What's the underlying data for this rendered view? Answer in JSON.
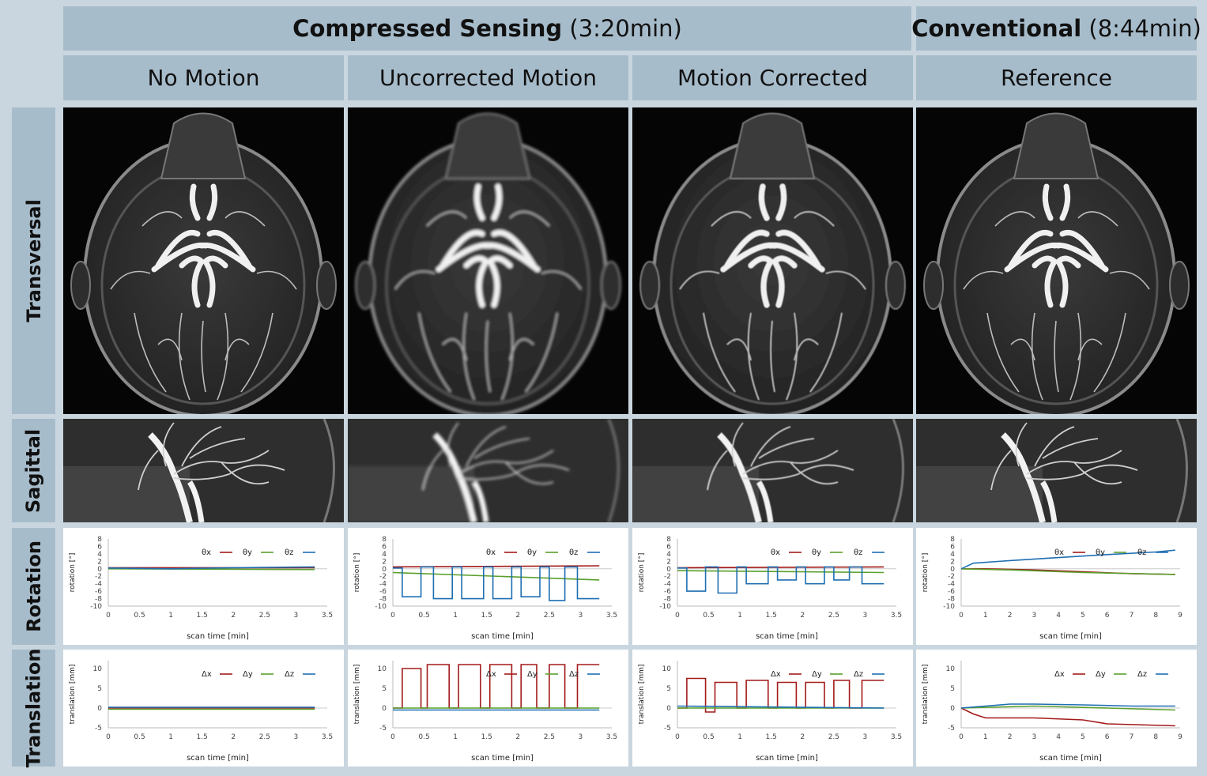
{
  "header": {
    "cs_bold": "Compressed Sensing",
    "cs_time": "(3:20min)",
    "conv_bold": "Conventional",
    "conv_time": "(8:44min)"
  },
  "columns": [
    "No Motion",
    "Uncorrected Motion",
    "Motion Corrected",
    "Reference"
  ],
  "rows": [
    "Transversal",
    "Sagittal",
    "Rotation",
    "Translation"
  ],
  "colors": {
    "x": "#a31a1a",
    "y": "#5aa02c",
    "z": "#1f6fb2",
    "header_bg": "#a7bccb",
    "page_bg": "#c9d6df"
  },
  "chart_data": [
    {
      "type": "line",
      "panel": "rotation-no-motion",
      "ylabel": "rotation [°]",
      "xlabel": "scan time [min]",
      "ylim": [
        -10,
        8
      ],
      "yticks": [
        8,
        6,
        4,
        2,
        0,
        -2,
        -4,
        -6,
        -8,
        -10
      ],
      "xticks": [
        0,
        0.5,
        1,
        1.5,
        2,
        2.5,
        3,
        3.5
      ],
      "legend": [
        "θx",
        "θy",
        "θz"
      ],
      "series": [
        {
          "name": "θx",
          "x": [
            0,
            3.3
          ],
          "y": [
            0.3,
            0.3
          ]
        },
        {
          "name": "θy",
          "x": [
            0,
            3.3
          ],
          "y": [
            0,
            -0.2
          ]
        },
        {
          "name": "θz",
          "x": [
            0,
            1,
            2,
            3.3
          ],
          "y": [
            0.2,
            0,
            0.3,
            0.5
          ]
        }
      ]
    },
    {
      "type": "line",
      "panel": "rotation-uncorrected",
      "ylabel": "rotation [°]",
      "xlabel": "scan time [min]",
      "ylim": [
        -10,
        8
      ],
      "yticks": [
        8,
        6,
        4,
        2,
        0,
        -2,
        -4,
        -6,
        -8,
        -10
      ],
      "xticks": [
        0,
        0.5,
        1,
        1.5,
        2,
        2.5,
        3,
        3.5
      ],
      "legend": [
        "θx",
        "θy",
        "θz"
      ],
      "series": [
        {
          "name": "θx",
          "x": [
            0,
            3.3
          ],
          "y": [
            0.5,
            0.8
          ]
        },
        {
          "name": "θy",
          "x": [
            0,
            3.3
          ],
          "y": [
            -1,
            -3
          ]
        },
        {
          "name": "θz",
          "x": [
            0,
            0.15,
            0.15,
            0.45,
            0.45,
            0.65,
            0.65,
            0.95,
            0.95,
            1.1,
            1.1,
            1.45,
            1.45,
            1.6,
            1.6,
            1.9,
            1.9,
            2.05,
            2.05,
            2.35,
            2.35,
            2.5,
            2.5,
            2.75,
            2.75,
            2.95,
            2.95,
            3.3
          ],
          "y": [
            0.2,
            0.2,
            -7.5,
            -7.5,
            0.5,
            0.5,
            -8,
            -8,
            0.5,
            0.5,
            -8,
            -8,
            0.5,
            0.5,
            -8,
            -8,
            0.5,
            0.5,
            -7.5,
            -7.5,
            0.5,
            0.5,
            -8.5,
            -8.5,
            0.5,
            0.5,
            -8,
            -8
          ]
        }
      ]
    },
    {
      "type": "line",
      "panel": "rotation-corrected",
      "ylabel": "rotation [°]",
      "xlabel": "scan time [min]",
      "ylim": [
        -10,
        8
      ],
      "yticks": [
        8,
        6,
        4,
        2,
        0,
        -2,
        -4,
        -6,
        -8,
        -10
      ],
      "xticks": [
        0,
        0.5,
        1,
        1.5,
        2,
        2.5,
        3,
        3.5
      ],
      "legend": [
        "θx",
        "θy",
        "θz"
      ],
      "series": [
        {
          "name": "θx",
          "x": [
            0,
            3.3
          ],
          "y": [
            0.3,
            0.5
          ]
        },
        {
          "name": "θy",
          "x": [
            0,
            3.3
          ],
          "y": [
            -0.5,
            -1
          ]
        },
        {
          "name": "θz",
          "x": [
            0,
            0.15,
            0.15,
            0.45,
            0.45,
            0.65,
            0.65,
            0.95,
            0.95,
            1.1,
            1.1,
            1.45,
            1.45,
            1.6,
            1.6,
            1.9,
            1.9,
            2.05,
            2.05,
            2.35,
            2.35,
            2.5,
            2.5,
            2.75,
            2.75,
            2.95,
            2.95,
            3.3
          ],
          "y": [
            0.2,
            0.2,
            -6,
            -6,
            0.5,
            0.5,
            -6.5,
            -6.5,
            0.5,
            0.5,
            -4,
            -4,
            0.5,
            0.5,
            -3,
            -3,
            0.5,
            0.5,
            -4,
            -4,
            0.5,
            0.5,
            -3,
            -3,
            0.5,
            0.5,
            -4,
            -4
          ]
        }
      ]
    },
    {
      "type": "line",
      "panel": "rotation-reference",
      "ylabel": "rotation [°]",
      "xlabel": "scan time [min]",
      "ylim": [
        -10,
        8
      ],
      "yticks": [
        8,
        6,
        4,
        2,
        0,
        -2,
        -4,
        -6,
        -8,
        -10
      ],
      "xticks": [
        0,
        1,
        2,
        3,
        4,
        5,
        6,
        7,
        8,
        9
      ],
      "legend": [
        "θx",
        "θy",
        "θz"
      ],
      "series": [
        {
          "name": "θx",
          "x": [
            0,
            1,
            3,
            5,
            7,
            8.8
          ],
          "y": [
            0,
            0,
            -0.3,
            -0.8,
            -1.3,
            -1.5
          ]
        },
        {
          "name": "θy",
          "x": [
            0,
            2,
            5,
            8.8
          ],
          "y": [
            0,
            -0.3,
            -1,
            -1.5
          ]
        },
        {
          "name": "θz",
          "x": [
            0,
            0.5,
            2,
            4,
            6,
            8,
            8.8
          ],
          "y": [
            0,
            1.5,
            2.2,
            3,
            3.8,
            4.5,
            5
          ]
        }
      ]
    },
    {
      "type": "line",
      "panel": "translation-no-motion",
      "ylabel": "translation [mm]",
      "xlabel": "scan time [min]",
      "ylim": [
        -5,
        12
      ],
      "yticks": [
        10,
        5,
        0,
        -5
      ],
      "xticks": [
        0,
        0.5,
        1,
        1.5,
        2,
        2.5,
        3,
        3.5
      ],
      "legend": [
        "Δx",
        "Δy",
        "Δz"
      ],
      "series": [
        {
          "name": "Δx",
          "x": [
            0,
            3.3
          ],
          "y": [
            0,
            0
          ]
        },
        {
          "name": "Δy",
          "x": [
            0,
            3.3
          ],
          "y": [
            -0.3,
            -0.3
          ]
        },
        {
          "name": "Δz",
          "x": [
            0,
            3.3
          ],
          "y": [
            0.2,
            0.2
          ]
        }
      ]
    },
    {
      "type": "line",
      "panel": "translation-uncorrected",
      "ylabel": "translation [mm]",
      "xlabel": "scan time [min]",
      "ylim": [
        -5,
        12
      ],
      "yticks": [
        10,
        5,
        0,
        -5
      ],
      "xticks": [
        0,
        0.5,
        1,
        1.5,
        2,
        2.5,
        3,
        3.5
      ],
      "legend": [
        "Δx",
        "Δy",
        "Δz"
      ],
      "series": [
        {
          "name": "Δx",
          "x": [
            0,
            0.15,
            0.15,
            0.45,
            0.45,
            0.55,
            0.55,
            0.9,
            0.9,
            1.05,
            1.05,
            1.4,
            1.4,
            1.55,
            1.55,
            1.9,
            1.9,
            2.05,
            2.05,
            2.3,
            2.3,
            2.5,
            2.5,
            2.75,
            2.75,
            2.95,
            2.95,
            3.3
          ],
          "y": [
            0,
            0,
            10,
            10,
            0,
            0,
            11,
            11,
            0,
            0,
            11,
            11,
            0,
            0,
            11,
            11,
            0,
            0,
            11,
            11,
            0,
            0,
            11,
            11,
            0,
            0,
            11,
            11
          ]
        },
        {
          "name": "Δy",
          "x": [
            0,
            3.3
          ],
          "y": [
            0,
            0
          ]
        },
        {
          "name": "Δz",
          "x": [
            0,
            3.3
          ],
          "y": [
            -0.5,
            -0.5
          ]
        }
      ]
    },
    {
      "type": "line",
      "panel": "translation-corrected",
      "ylabel": "translation [mm]",
      "xlabel": "scan time [min]",
      "ylim": [
        -5,
        12
      ],
      "yticks": [
        10,
        5,
        0,
        -5
      ],
      "xticks": [
        0,
        0.5,
        1,
        1.5,
        2,
        2.5,
        3,
        3.5
      ],
      "legend": [
        "Δx",
        "Δy",
        "Δz"
      ],
      "series": [
        {
          "name": "Δx",
          "x": [
            0,
            0.15,
            0.15,
            0.45,
            0.45,
            0.6,
            0.6,
            0.95,
            0.95,
            1.1,
            1.1,
            1.45,
            1.45,
            1.6,
            1.6,
            1.9,
            1.9,
            2.05,
            2.05,
            2.35,
            2.35,
            2.5,
            2.5,
            2.75,
            2.75,
            2.95,
            2.95,
            3.3
          ],
          "y": [
            0,
            0,
            7.5,
            7.5,
            -1,
            -1,
            6.5,
            6.5,
            0,
            0,
            7,
            7,
            0,
            0,
            6.5,
            6.5,
            0,
            0,
            6.5,
            6.5,
            0,
            0,
            7,
            7,
            0,
            0,
            7,
            7
          ]
        },
        {
          "name": "Δy",
          "x": [
            0,
            3.3
          ],
          "y": [
            0,
            0
          ]
        },
        {
          "name": "Δz",
          "x": [
            0,
            3.3
          ],
          "y": [
            0.5,
            0
          ]
        }
      ]
    },
    {
      "type": "line",
      "panel": "translation-reference",
      "ylabel": "translation [mm]",
      "xlabel": "scan time [min]",
      "ylim": [
        -5,
        12
      ],
      "yticks": [
        10,
        5,
        0,
        -5
      ],
      "xticks": [
        0,
        1,
        2,
        3,
        4,
        5,
        6,
        7,
        8,
        9
      ],
      "legend": [
        "Δx",
        "Δy",
        "Δz"
      ],
      "series": [
        {
          "name": "Δx",
          "x": [
            0,
            0.5,
            1,
            3,
            5,
            6,
            8.8
          ],
          "y": [
            0,
            -1.5,
            -2.5,
            -2.5,
            -3,
            -4,
            -4.5
          ]
        },
        {
          "name": "Δy",
          "x": [
            0,
            3,
            6,
            8.8
          ],
          "y": [
            0,
            0.5,
            0,
            -0.5
          ]
        },
        {
          "name": "Δz",
          "x": [
            0,
            2,
            3,
            5,
            7,
            8.8
          ],
          "y": [
            0,
            1,
            1,
            0.8,
            0.5,
            0.5
          ]
        }
      ]
    }
  ]
}
